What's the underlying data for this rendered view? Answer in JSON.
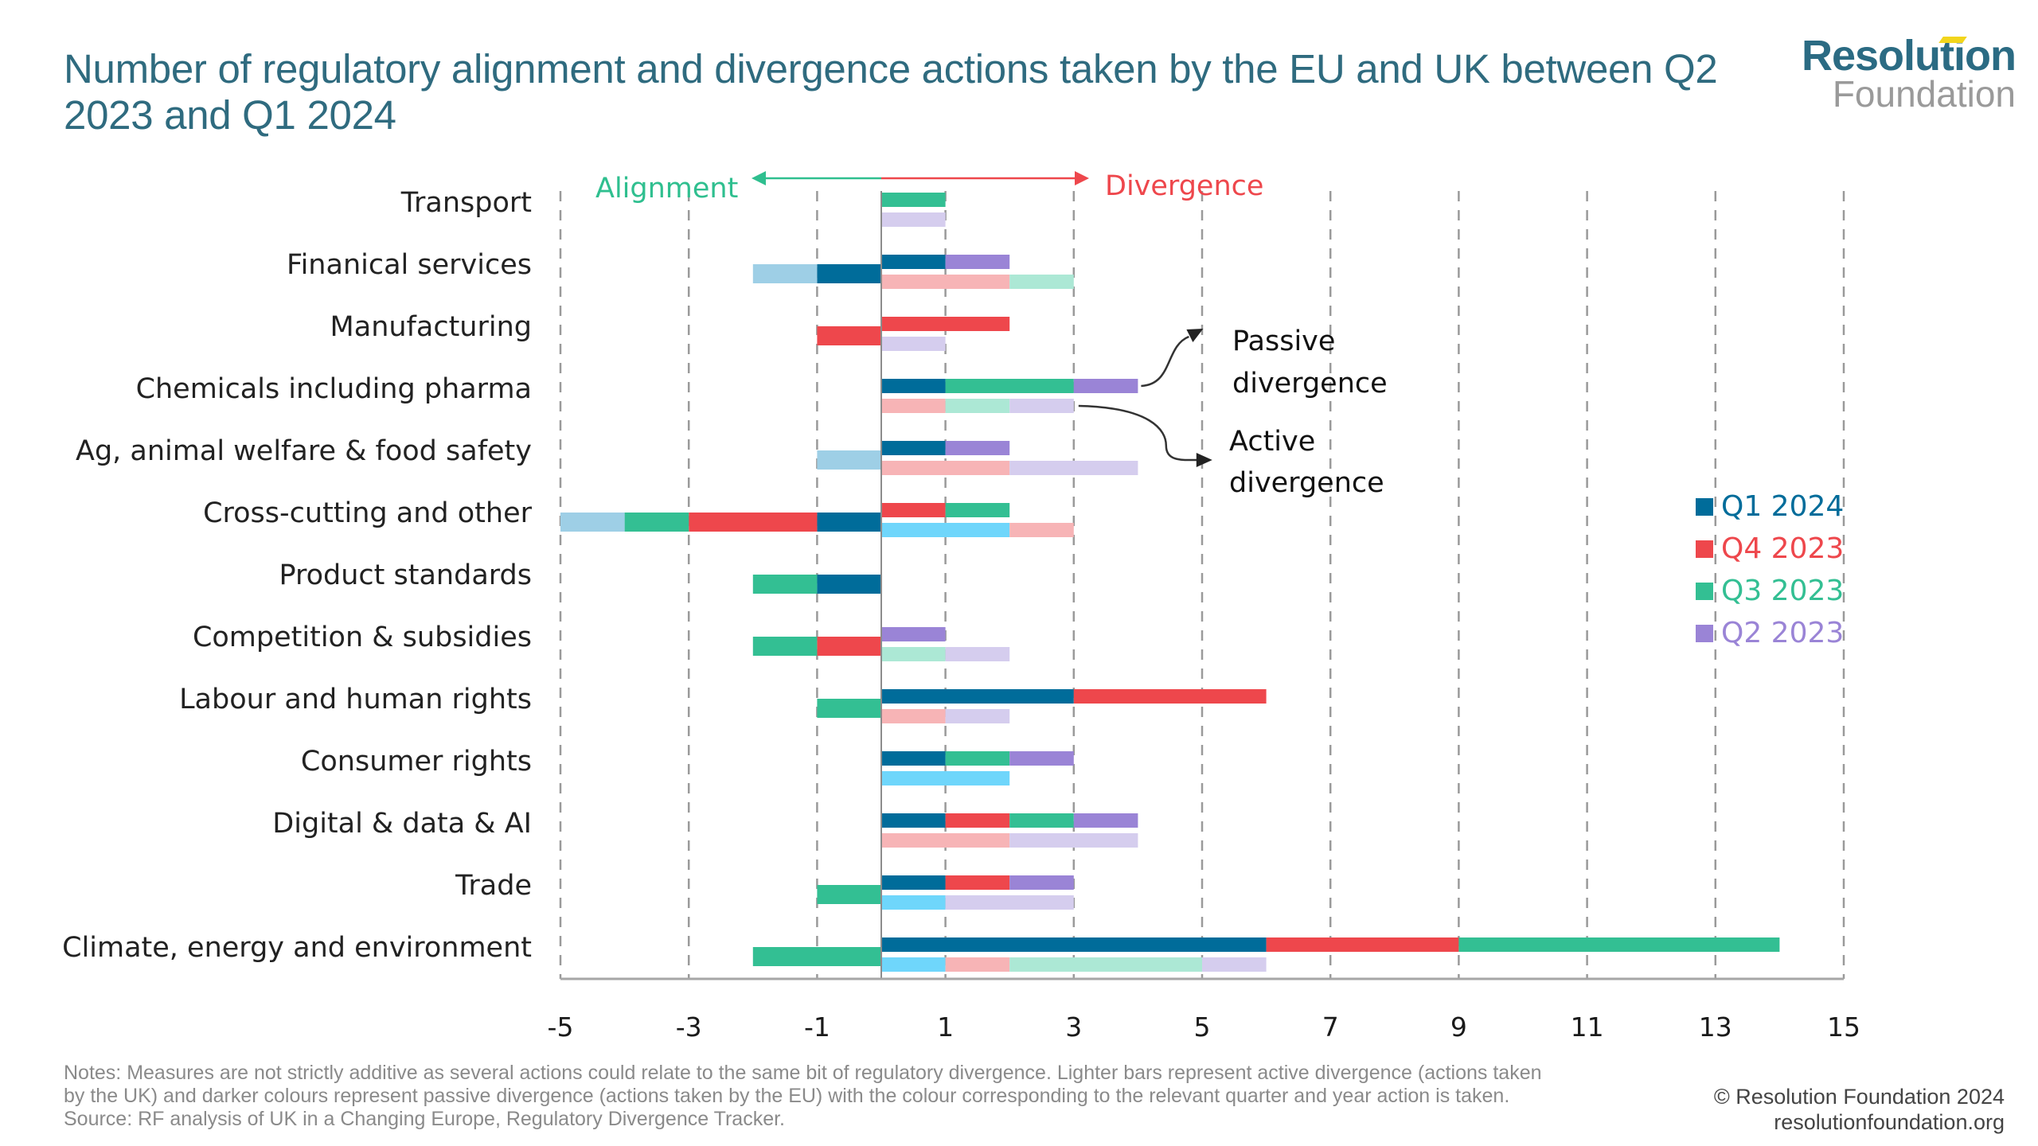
{
  "header": {
    "title": "Number of regulatory alignment and divergence actions taken by the EU and UK between Q2 2023 and Q1 2024",
    "logo_top": "Resolution",
    "logo_bottom": "Foundation"
  },
  "colors": {
    "Q1 2024": "#006c9a",
    "Q4 2023": "#ee474c",
    "Q3 2023": "#33bf93",
    "Q2 2023": "#9a84d6",
    "Q1 2024 active (divergence)": "#6fd6fb",
    "Q1 2024 active (alignment)": "#9ecfe6",
    "Q4 2023 active": "#f7b4b6",
    "Q3 2023 active": "#ace8d5",
    "Q2 2023 active": "#d5cdee",
    "alignment": "#2fbf8f",
    "divergence": "#ee474c",
    "title": "#2f6b7f"
  },
  "chart_data": {
    "type": "bar",
    "orientation": "horizontal-stacked",
    "title": "Number of regulatory alignment and divergence actions taken by the EU and UK between Q2 2023 and Q1 2024",
    "xlabel": "",
    "ylabel": "",
    "xlim": [
      -5,
      15
    ],
    "xticks": [
      -5,
      -3,
      -1,
      1,
      3,
      5,
      7,
      9,
      11,
      13,
      15
    ],
    "grid": "vertical dashed",
    "direction_labels": {
      "left": "Alignment",
      "right": "Divergence"
    },
    "annotations": [
      {
        "text_line1": "Passive",
        "text_line2": "divergence",
        "points_to": "Chemicals including pharma passive bar"
      },
      {
        "text_line1": "Active",
        "text_line2": "divergence",
        "points_to": "Chemicals including pharma active bar"
      }
    ],
    "legend": {
      "position": "right",
      "entries": [
        "Q1 2024",
        "Q4 2023",
        "Q3 2023",
        "Q2 2023"
      ]
    },
    "categories": [
      "Transport",
      "Finanical services",
      "Manufacturing",
      "Chemicals including pharma",
      "Ag, animal welfare & food safety",
      "Cross-cutting and other",
      "Product standards",
      "Competition & subsidies",
      "Labour and human rights",
      "Consumer rights",
      "Digital & data & AI",
      "Trade",
      "Climate, energy and environment"
    ],
    "series_note": "passive = EU actions (dark colours), active = UK actions (light colours); alignment values are negative",
    "rows": [
      {
        "category": "Transport",
        "passive": [
          {
            "quarter": "Q3 2023",
            "value": 1
          }
        ],
        "active": [
          {
            "quarter": "Q2 2023",
            "value": 1
          }
        ],
        "alignment": []
      },
      {
        "category": "Finanical services",
        "passive": [
          {
            "quarter": "Q1 2024",
            "value": 1
          },
          {
            "quarter": "Q2 2023",
            "value": 1
          }
        ],
        "active": [
          {
            "quarter": "Q4 2023",
            "value": 2
          },
          {
            "quarter": "Q3 2023",
            "value": 1
          }
        ],
        "alignment": [
          {
            "quarter": "Q1 2024",
            "type": "passive",
            "value": -1
          },
          {
            "quarter": "Q1 2024",
            "type": "active",
            "value": -1
          }
        ]
      },
      {
        "category": "Manufacturing",
        "passive": [
          {
            "quarter": "Q4 2023",
            "value": 2
          }
        ],
        "active": [
          {
            "quarter": "Q2 2023",
            "value": 1
          }
        ],
        "alignment": [
          {
            "quarter": "Q4 2023",
            "type": "passive",
            "value": -1
          }
        ]
      },
      {
        "category": "Chemicals including pharma",
        "passive": [
          {
            "quarter": "Q1 2024",
            "value": 1
          },
          {
            "quarter": "Q3 2023",
            "value": 2
          },
          {
            "quarter": "Q2 2023",
            "value": 1
          }
        ],
        "active": [
          {
            "quarter": "Q4 2023",
            "value": 1
          },
          {
            "quarter": "Q3 2023",
            "value": 1
          },
          {
            "quarter": "Q2 2023",
            "value": 1
          }
        ],
        "alignment": []
      },
      {
        "category": "Ag, animal welfare & food safety",
        "passive": [
          {
            "quarter": "Q1 2024",
            "value": 1
          },
          {
            "quarter": "Q2 2023",
            "value": 1
          }
        ],
        "active": [
          {
            "quarter": "Q4 2023",
            "value": 2
          },
          {
            "quarter": "Q2 2023",
            "value": 2
          }
        ],
        "alignment": [
          {
            "quarter": "Q1 2024",
            "type": "active",
            "value": -1
          }
        ]
      },
      {
        "category": "Cross-cutting and other",
        "passive": [
          {
            "quarter": "Q4 2023",
            "value": 1
          },
          {
            "quarter": "Q3 2023",
            "value": 1
          }
        ],
        "active": [
          {
            "quarter": "Q1 2024",
            "value": 2
          },
          {
            "quarter": "Q4 2023",
            "value": 1
          }
        ],
        "alignment": [
          {
            "quarter": "Q1 2024",
            "type": "passive",
            "value": -1
          },
          {
            "quarter": "Q4 2023",
            "type": "passive",
            "value": -2
          },
          {
            "quarter": "Q3 2023",
            "type": "passive",
            "value": -1
          },
          {
            "quarter": "Q1 2024",
            "type": "active",
            "value": -1
          }
        ]
      },
      {
        "category": "Product standards",
        "passive": [],
        "active": [],
        "alignment": [
          {
            "quarter": "Q1 2024",
            "type": "passive",
            "value": -1
          },
          {
            "quarter": "Q3 2023",
            "type": "passive",
            "value": -1
          }
        ]
      },
      {
        "category": "Competition & subsidies",
        "passive": [
          {
            "quarter": "Q2 2023",
            "value": 1
          }
        ],
        "active": [
          {
            "quarter": "Q3 2023",
            "value": 1
          },
          {
            "quarter": "Q2 2023",
            "value": 1
          }
        ],
        "alignment": [
          {
            "quarter": "Q4 2023",
            "type": "passive",
            "value": -1
          },
          {
            "quarter": "Q3 2023",
            "type": "passive",
            "value": -1
          }
        ]
      },
      {
        "category": "Labour and human rights",
        "passive": [
          {
            "quarter": "Q1 2024",
            "value": 3
          },
          {
            "quarter": "Q4 2023",
            "value": 3
          }
        ],
        "active": [
          {
            "quarter": "Q4 2023",
            "value": 1
          },
          {
            "quarter": "Q2 2023",
            "value": 1
          }
        ],
        "alignment": [
          {
            "quarter": "Q3 2023",
            "type": "passive",
            "value": -1
          }
        ]
      },
      {
        "category": "Consumer rights",
        "passive": [
          {
            "quarter": "Q1 2024",
            "value": 1
          },
          {
            "quarter": "Q3 2023",
            "value": 1
          },
          {
            "quarter": "Q2 2023",
            "value": 1
          }
        ],
        "active": [
          {
            "quarter": "Q1 2024",
            "value": 2
          }
        ],
        "alignment": []
      },
      {
        "category": "Digital & data & AI",
        "passive": [
          {
            "quarter": "Q1 2024",
            "value": 1
          },
          {
            "quarter": "Q4 2023",
            "value": 1
          },
          {
            "quarter": "Q3 2023",
            "value": 1
          },
          {
            "quarter": "Q2 2023",
            "value": 1
          }
        ],
        "active": [
          {
            "quarter": "Q4 2023",
            "value": 2
          },
          {
            "quarter": "Q2 2023",
            "value": 2
          }
        ],
        "alignment": []
      },
      {
        "category": "Trade",
        "passive": [
          {
            "quarter": "Q1 2024",
            "value": 1
          },
          {
            "quarter": "Q4 2023",
            "value": 1
          },
          {
            "quarter": "Q2 2023",
            "value": 1
          }
        ],
        "active": [
          {
            "quarter": "Q1 2024",
            "value": 1
          },
          {
            "quarter": "Q2 2023",
            "value": 2
          }
        ],
        "alignment": [
          {
            "quarter": "Q3 2023",
            "type": "passive",
            "value": -1
          }
        ]
      },
      {
        "category": "Climate, energy and environment",
        "passive": [
          {
            "quarter": "Q1 2024",
            "value": 6
          },
          {
            "quarter": "Q4 2023",
            "value": 3
          },
          {
            "quarter": "Q3 2023",
            "value": 5
          }
        ],
        "active": [
          {
            "quarter": "Q1 2024",
            "value": 1
          },
          {
            "quarter": "Q4 2023",
            "value": 1
          },
          {
            "quarter": "Q3 2023",
            "value": 3
          },
          {
            "quarter": "Q2 2023",
            "value": 1
          }
        ],
        "alignment": [
          {
            "quarter": "Q3 2023",
            "type": "passive",
            "value": -2
          }
        ]
      }
    ]
  },
  "footer": {
    "notes_line1": "Notes: Measures are not strictly additive as several actions could relate to the same bit of regulatory divergence. Lighter bars represent active divergence (actions taken",
    "notes_line2": "by the UK) and darker colours represent passive divergence (actions taken by the EU) with the colour corresponding to the relevant quarter and year action is taken.",
    "source": "Source: RF analysis of UK in a Changing Europe, Regulatory Divergence Tracker.",
    "copyright": "© Resolution Foundation 2024",
    "website": "resolutionfoundation.org"
  }
}
